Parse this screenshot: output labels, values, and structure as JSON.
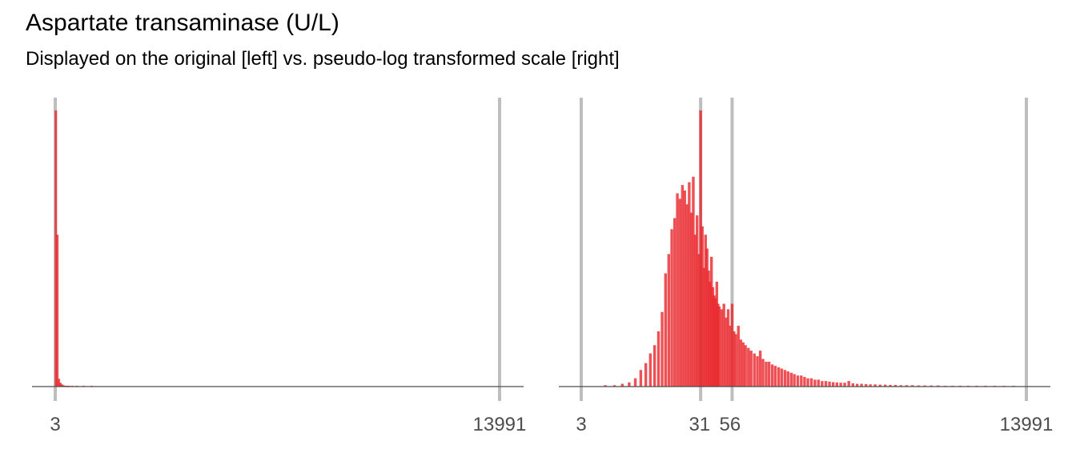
{
  "title": "Aspartate transaminase (U/L)",
  "subtitle": "Displayed on the original [left] vs. pseudo-log transformed scale [right]",
  "colors": {
    "bar": "#e8262a",
    "refline": "#bebebe",
    "axis": "#4d4d4d"
  },
  "chart_data": [
    {
      "type": "bar",
      "panel": "left",
      "scale": "linear",
      "xlim": [
        3,
        13991
      ],
      "tick_values": [
        3,
        13991
      ],
      "tick_labels": [
        "3",
        "13991"
      ],
      "reference_lines": [
        3,
        13991
      ],
      "bins": [
        {
          "x": 23,
          "h": 1.0
        },
        {
          "x": 70,
          "h": 0.55
        },
        {
          "x": 117,
          "h": 0.028
        },
        {
          "x": 164,
          "h": 0.014
        },
        {
          "x": 211,
          "h": 0.008
        },
        {
          "x": 258,
          "h": 0.005
        },
        {
          "x": 305,
          "h": 0.003
        },
        {
          "x": 352,
          "h": 0.002
        },
        {
          "x": 399,
          "h": 0.002
        },
        {
          "x": 446,
          "h": 0.0015
        },
        {
          "x": 540,
          "h": 0.001
        },
        {
          "x": 680,
          "h": 0.001
        },
        {
          "x": 900,
          "h": 0.001
        },
        {
          "x": 1150,
          "h": 0.001
        }
      ]
    },
    {
      "type": "bar",
      "panel": "right",
      "scale": "pseudo-log",
      "xlim": [
        3,
        13991
      ],
      "tick_values": [
        3,
        31,
        56,
        13991
      ],
      "tick_labels": [
        "3",
        "31",
        "56",
        "13991"
      ],
      "reference_lines": [
        3,
        31,
        56,
        13991
      ],
      "bins": [
        {
          "x": 5,
          "h": 0.005
        },
        {
          "x": 6,
          "h": 0.005
        },
        {
          "x": 7,
          "h": 0.01
        },
        {
          "x": 8,
          "h": 0.015
        },
        {
          "x": 9,
          "h": 0.03
        },
        {
          "x": 10,
          "h": 0.06
        },
        {
          "x": 11,
          "h": 0.085
        },
        {
          "x": 12,
          "h": 0.12
        },
        {
          "x": 13,
          "h": 0.15
        },
        {
          "x": 14,
          "h": 0.2
        },
        {
          "x": 15,
          "h": 0.27
        },
        {
          "x": 16,
          "h": 0.41
        },
        {
          "x": 17,
          "h": 0.48
        },
        {
          "x": 18,
          "h": 0.57
        },
        {
          "x": 19,
          "h": 0.61
        },
        {
          "x": 20,
          "h": 0.7
        },
        {
          "x": 21,
          "h": 0.68
        },
        {
          "x": 22,
          "h": 0.73
        },
        {
          "x": 23,
          "h": 0.71
        },
        {
          "x": 24,
          "h": 0.66
        },
        {
          "x": 25,
          "h": 0.74
        },
        {
          "x": 26,
          "h": 0.63
        },
        {
          "x": 27,
          "h": 0.76
        },
        {
          "x": 28,
          "h": 0.55
        },
        {
          "x": 29,
          "h": 0.62
        },
        {
          "x": 30,
          "h": 0.48
        },
        {
          "x": 31,
          "h": 1.0
        },
        {
          "x": 32,
          "h": 0.58
        },
        {
          "x": 33,
          "h": 0.43
        },
        {
          "x": 34,
          "h": 0.55
        },
        {
          "x": 35,
          "h": 0.5
        },
        {
          "x": 36,
          "h": 0.42
        },
        {
          "x": 37,
          "h": 0.38
        },
        {
          "x": 38,
          "h": 0.47
        },
        {
          "x": 39,
          "h": 0.36
        },
        {
          "x": 40,
          "h": 0.33
        },
        {
          "x": 41,
          "h": 0.32
        },
        {
          "x": 42,
          "h": 0.38
        },
        {
          "x": 43,
          "h": 0.3
        },
        {
          "x": 44,
          "h": 0.29
        },
        {
          "x": 46,
          "h": 0.28
        },
        {
          "x": 48,
          "h": 0.3
        },
        {
          "x": 50,
          "h": 0.25
        },
        {
          "x": 52,
          "h": 0.28
        },
        {
          "x": 54,
          "h": 0.22
        },
        {
          "x": 56,
          "h": 0.3
        },
        {
          "x": 58,
          "h": 0.2
        },
        {
          "x": 60,
          "h": 0.19
        },
        {
          "x": 63,
          "h": 0.22
        },
        {
          "x": 66,
          "h": 0.17
        },
        {
          "x": 69,
          "h": 0.16
        },
        {
          "x": 72,
          "h": 0.15
        },
        {
          "x": 76,
          "h": 0.14
        },
        {
          "x": 80,
          "h": 0.13
        },
        {
          "x": 85,
          "h": 0.12
        },
        {
          "x": 90,
          "h": 0.11
        },
        {
          "x": 95,
          "h": 0.13
        },
        {
          "x": 100,
          "h": 0.1
        },
        {
          "x": 106,
          "h": 0.09
        },
        {
          "x": 112,
          "h": 0.09
        },
        {
          "x": 119,
          "h": 0.08
        },
        {
          "x": 126,
          "h": 0.075
        },
        {
          "x": 134,
          "h": 0.07
        },
        {
          "x": 142,
          "h": 0.065
        },
        {
          "x": 151,
          "h": 0.06
        },
        {
          "x": 160,
          "h": 0.055
        },
        {
          "x": 170,
          "h": 0.05
        },
        {
          "x": 180,
          "h": 0.045
        },
        {
          "x": 192,
          "h": 0.04
        },
        {
          "x": 205,
          "h": 0.04
        },
        {
          "x": 218,
          "h": 0.035
        },
        {
          "x": 232,
          "h": 0.03
        },
        {
          "x": 248,
          "h": 0.03
        },
        {
          "x": 265,
          "h": 0.025
        },
        {
          "x": 283,
          "h": 0.025
        },
        {
          "x": 303,
          "h": 0.02
        },
        {
          "x": 325,
          "h": 0.02
        },
        {
          "x": 348,
          "h": 0.018
        },
        {
          "x": 373,
          "h": 0.016
        },
        {
          "x": 400,
          "h": 0.015
        },
        {
          "x": 430,
          "h": 0.014
        },
        {
          "x": 463,
          "h": 0.014
        },
        {
          "x": 500,
          "h": 0.02
        },
        {
          "x": 540,
          "h": 0.012
        },
        {
          "x": 585,
          "h": 0.01
        },
        {
          "x": 635,
          "h": 0.01
        },
        {
          "x": 690,
          "h": 0.009
        },
        {
          "x": 750,
          "h": 0.008
        },
        {
          "x": 820,
          "h": 0.008
        },
        {
          "x": 900,
          "h": 0.007
        },
        {
          "x": 990,
          "h": 0.007
        },
        {
          "x": 1090,
          "h": 0.006
        },
        {
          "x": 1200,
          "h": 0.006
        },
        {
          "x": 1330,
          "h": 0.005
        },
        {
          "x": 1480,
          "h": 0.005
        },
        {
          "x": 1650,
          "h": 0.005
        },
        {
          "x": 1850,
          "h": 0.004
        },
        {
          "x": 2080,
          "h": 0.004
        },
        {
          "x": 2350,
          "h": 0.004
        },
        {
          "x": 2670,
          "h": 0.004
        },
        {
          "x": 3050,
          "h": 0.003
        },
        {
          "x": 3500,
          "h": 0.003
        },
        {
          "x": 4050,
          "h": 0.003
        },
        {
          "x": 4700,
          "h": 0.003
        },
        {
          "x": 5500,
          "h": 0.003
        },
        {
          "x": 6500,
          "h": 0.002
        },
        {
          "x": 7700,
          "h": 0.002
        },
        {
          "x": 9200,
          "h": 0.002
        },
        {
          "x": 11000,
          "h": 0.002
        }
      ]
    }
  ]
}
